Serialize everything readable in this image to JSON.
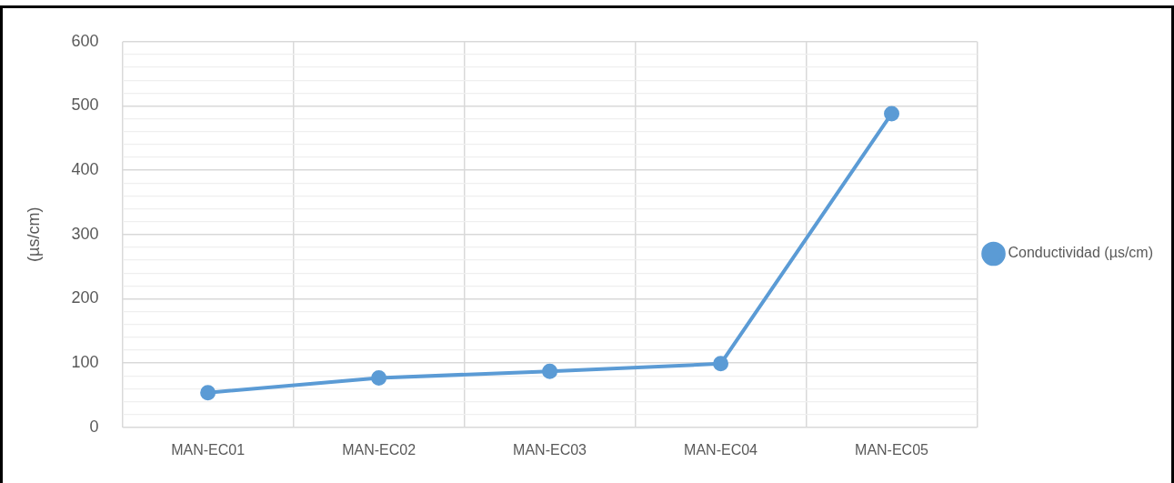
{
  "chart_data": {
    "type": "line",
    "ylabel": "(µs/cm)",
    "categories": [
      "MAN-EC01",
      "MAN-EC02",
      "MAN-EC03",
      "MAN-EC04",
      "MAN-EC05"
    ],
    "series": [
      {
        "name": "Conductividad (µs/cm)",
        "color": "#5b9bd5",
        "values": [
          54,
          77,
          87,
          99,
          488
        ]
      }
    ],
    "ylim": [
      0,
      600
    ],
    "yticks": [
      0,
      {
        "value": 20,
        "label": null
      },
      {
        "value": 40,
        "label": null
      },
      {
        "value": 60,
        "label": null
      },
      {
        "value": 80,
        "label": null
      },
      100,
      {
        "value": 120,
        "label": null
      },
      {
        "value": 140,
        "label": null
      },
      {
        "value": 160,
        "label": null
      },
      {
        "value": 180,
        "label": null
      },
      200,
      {
        "value": 220,
        "label": null
      },
      {
        "value": 240,
        "label": null
      },
      {
        "value": 260,
        "label": null
      },
      {
        "value": 280,
        "label": null
      },
      300,
      {
        "value": 320,
        "label": null
      },
      {
        "value": 340,
        "label": null
      },
      {
        "value": 360,
        "label": null
      },
      {
        "value": 380,
        "label": null
      },
      400,
      {
        "value": 420,
        "label": null
      },
      {
        "value": 440,
        "label": null
      },
      {
        "value": 460,
        "label": null
      },
      {
        "value": 480,
        "label": null
      },
      500,
      {
        "value": 520,
        "label": null
      },
      {
        "value": 540,
        "label": null
      },
      {
        "value": 560,
        "label": null
      },
      {
        "value": 580,
        "label": null
      },
      600
    ],
    "grid": true,
    "legend": "right",
    "marker": "circle",
    "line_style": "solid"
  }
}
